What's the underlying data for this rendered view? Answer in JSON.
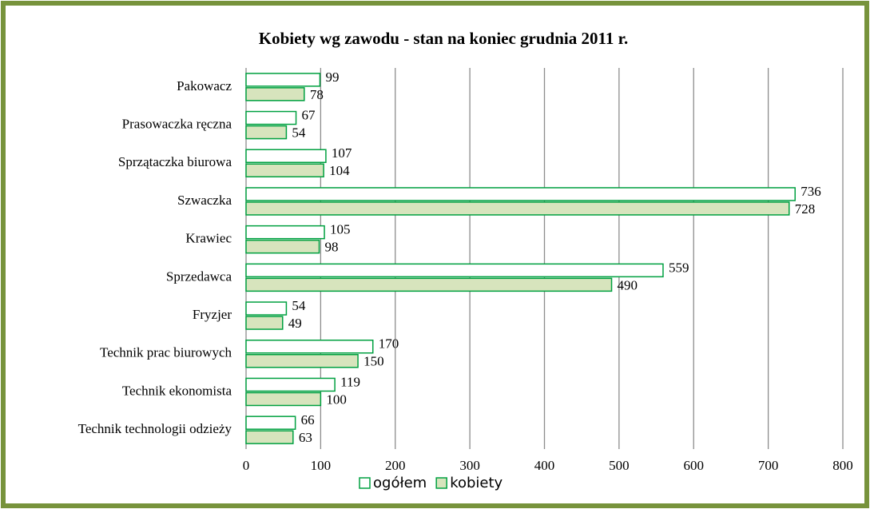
{
  "chart_data": {
    "type": "barh",
    "title": "Kobiety wg zawodu - stan na koniec grudnia 2011 r.",
    "categories": [
      "Pakowacz",
      "Prasowaczka ręczna",
      "Sprzątaczka biurowa",
      "Szwaczka",
      "Krawiec",
      "Sprzedawca",
      "Fryzjer",
      "Technik prac biurowych",
      "Technik ekonomista",
      "Technik technologii odzieży"
    ],
    "series": [
      {
        "name": "ogółem",
        "color": "#ffffff",
        "values": [
          99,
          67,
          107,
          736,
          105,
          559,
          54,
          170,
          119,
          66
        ]
      },
      {
        "name": "kobiety",
        "color": "#d7e4bd",
        "values": [
          78,
          54,
          104,
          728,
          98,
          490,
          49,
          150,
          100,
          63
        ]
      }
    ],
    "bar_edge_color": "#00a040",
    "xlim": [
      0,
      800
    ],
    "xticks": [
      0,
      100,
      200,
      300,
      400,
      500,
      600,
      700,
      800
    ],
    "grid": true,
    "legend": "bottom"
  }
}
